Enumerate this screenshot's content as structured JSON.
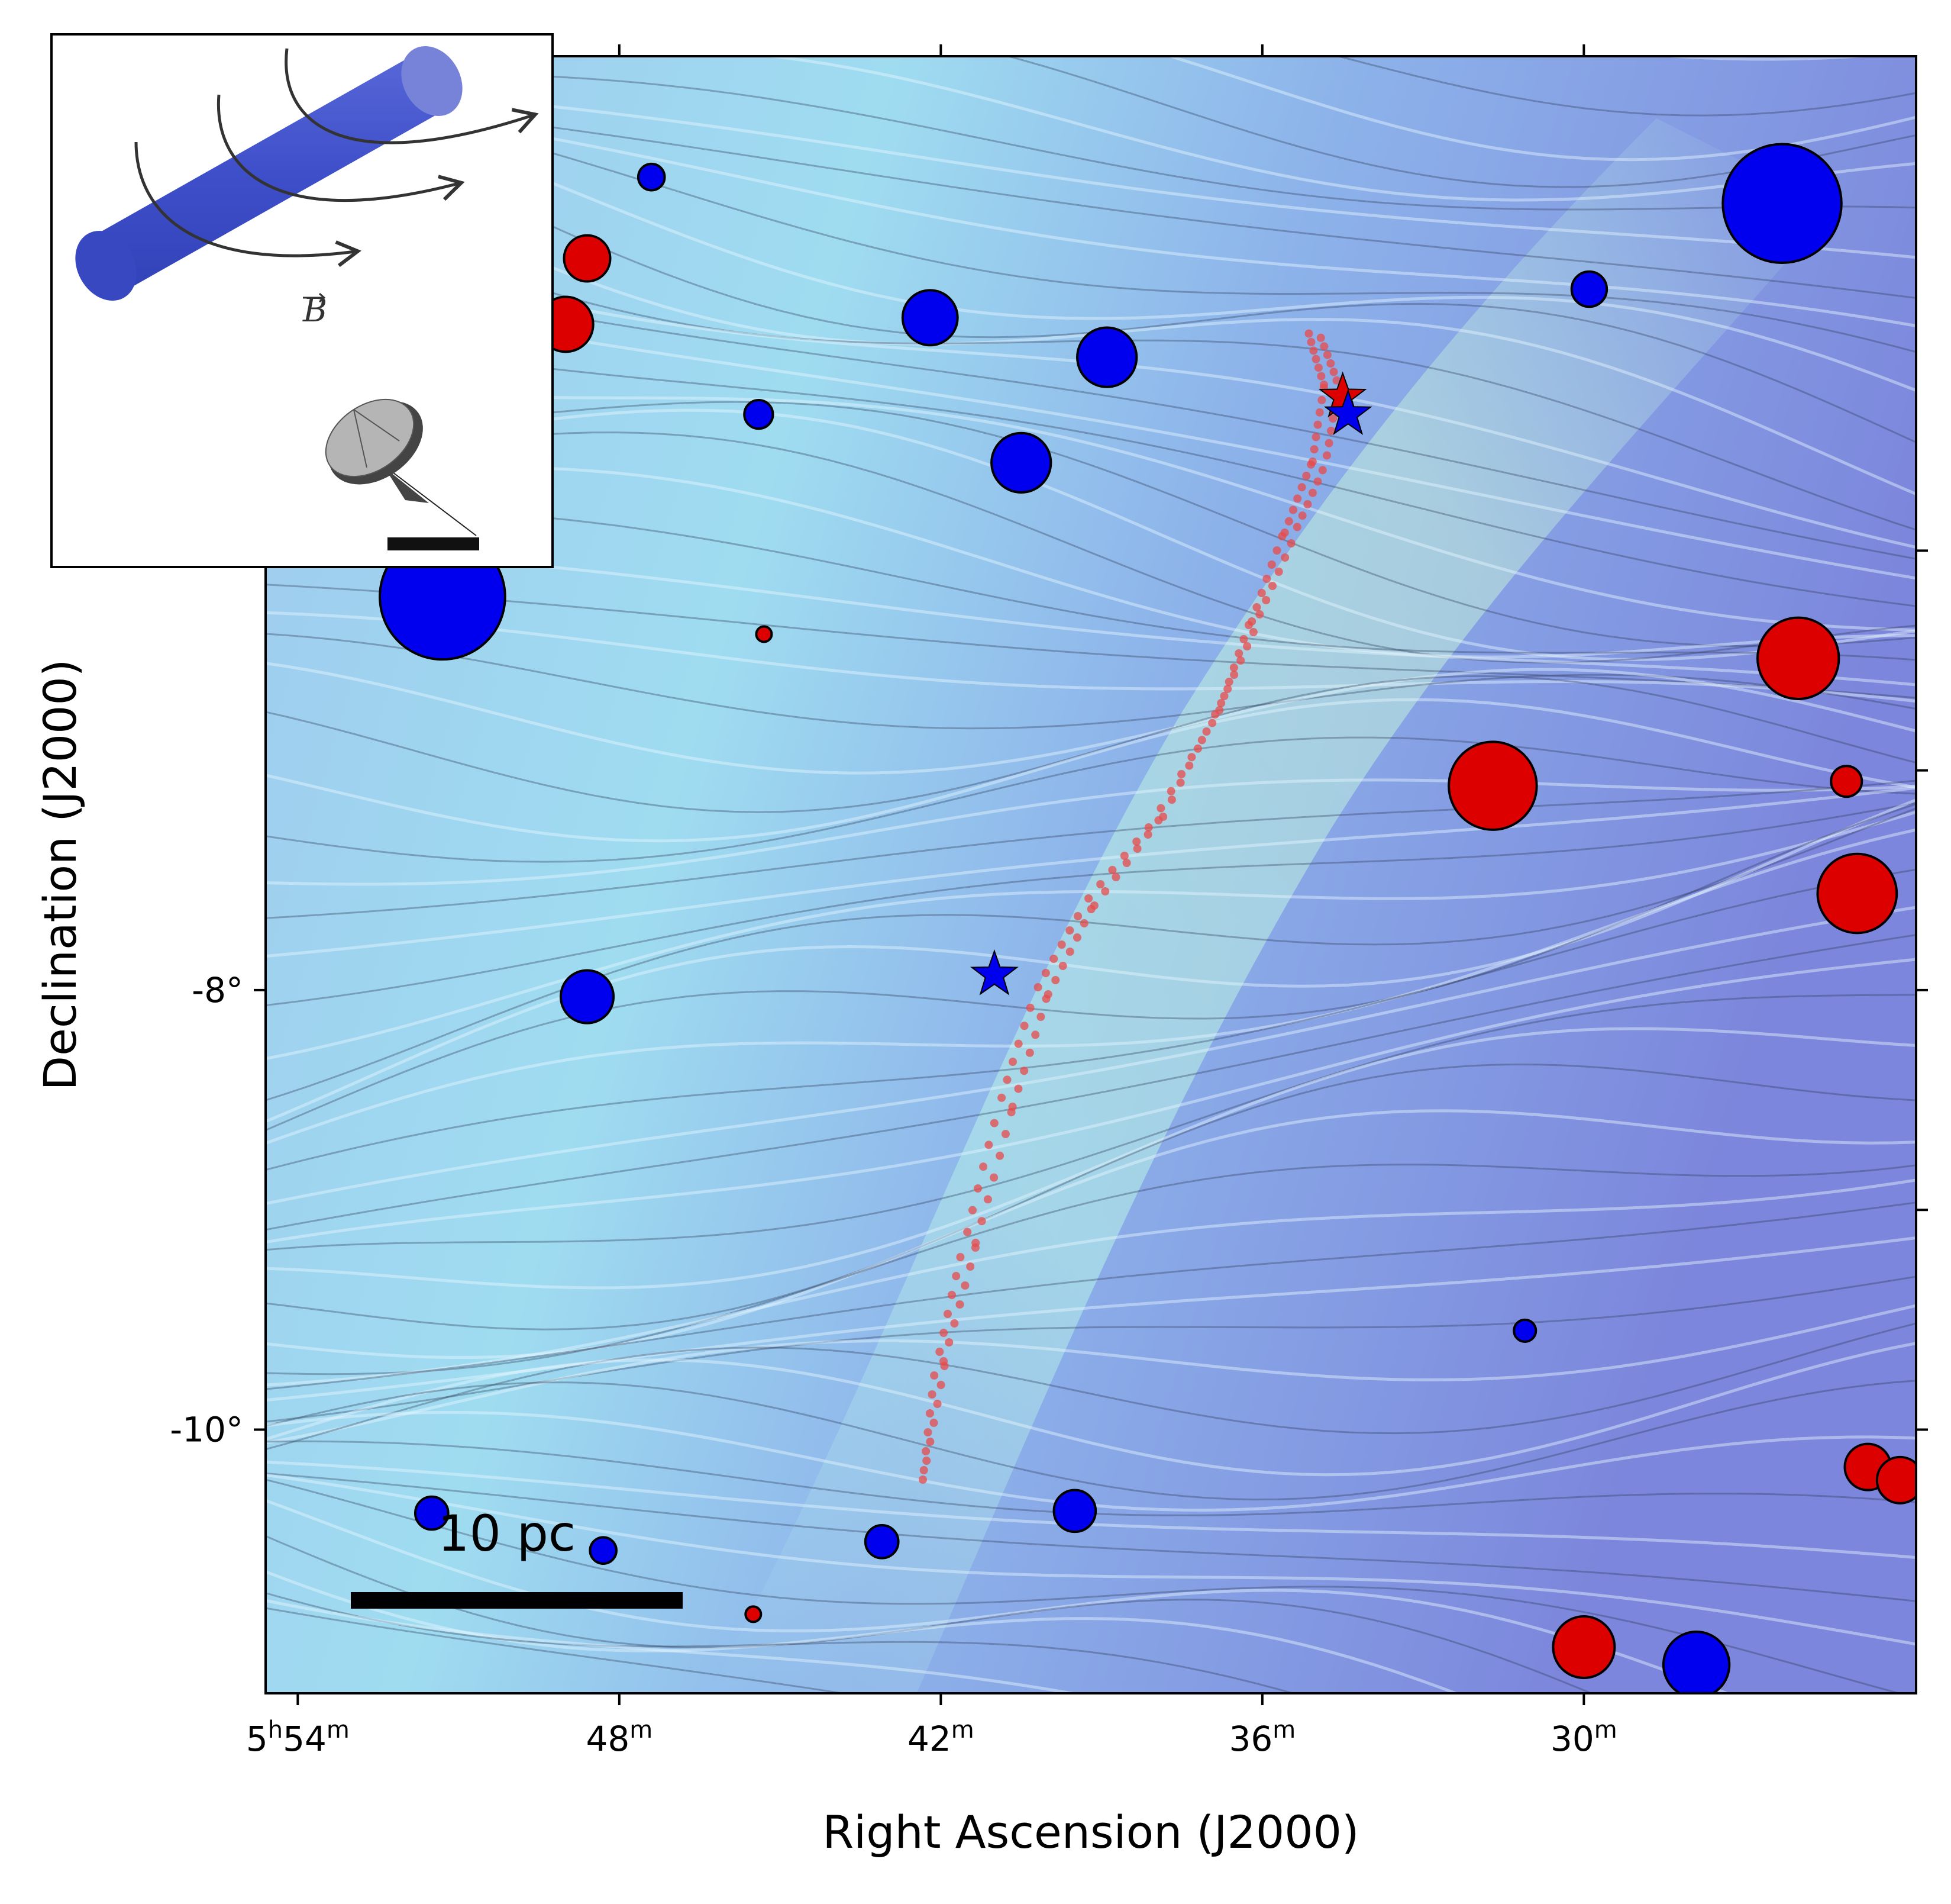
{
  "chart_data": {
    "type": "scatter",
    "xlabel": "Right Ascension (J2000)",
    "ylabel": "Declination (J2000)",
    "x_ticks": [
      {
        "value": 354,
        "hours": "5",
        "minutes": "54",
        "h_unit": "h",
        "m_unit": "m"
      },
      {
        "value": 348,
        "minutes": "48",
        "m_unit": "m"
      },
      {
        "value": 342,
        "minutes": "42",
        "m_unit": "m"
      },
      {
        "value": 336,
        "minutes": "36",
        "m_unit": "m"
      },
      {
        "value": 330,
        "minutes": "30",
        "m_unit": "m"
      }
    ],
    "y_ticks": [
      {
        "value": -8,
        "label": "-8°"
      },
      {
        "value": -10,
        "label": "-10°"
      }
    ],
    "y_minor_ticks": [
      -6,
      -7,
      -9
    ],
    "xlim": [
      354.6,
      323.8
    ],
    "ylim": [
      -11.2,
      -3.75
    ],
    "scale_bar": {
      "label": "10 pc"
    },
    "inset": {
      "b_label": "B"
    },
    "colors": {
      "blue_marker": "#0000ee",
      "red_marker": "#dd0000",
      "filament": "#e84a4a",
      "background": "#7f8fe0",
      "highlight": "#a9e6f2"
    },
    "stars": [
      {
        "ra": 334.5,
        "dec": -5.3,
        "color": "red"
      },
      {
        "ra": 334.4,
        "dec": -5.38,
        "color": "blue"
      },
      {
        "ra": 341.0,
        "dec": -7.93,
        "color": "blue"
      }
    ],
    "blue_circles": [
      {
        "ra": 347.4,
        "dec": -4.3,
        "size": 0.12
      },
      {
        "ra": 342.2,
        "dec": -4.94,
        "size": 0.25
      },
      {
        "ra": 338.9,
        "dec": -5.12,
        "size": 0.27
      },
      {
        "ra": 345.4,
        "dec": -5.38,
        "size": 0.13
      },
      {
        "ra": 340.5,
        "dec": -5.6,
        "size": 0.27
      },
      {
        "ra": 329.9,
        "dec": -4.81,
        "size": 0.16
      },
      {
        "ra": 326.3,
        "dec": -4.42,
        "size": 0.54
      },
      {
        "ra": 351.3,
        "dec": -6.21,
        "size": 0.57
      },
      {
        "ra": 348.6,
        "dec": -8.03,
        "size": 0.24
      },
      {
        "ra": 331.1,
        "dec": -9.55,
        "size": 0.1
      },
      {
        "ra": 339.5,
        "dec": -10.37,
        "size": 0.19
      },
      {
        "ra": 343.1,
        "dec": -10.51,
        "size": 0.15
      },
      {
        "ra": 351.5,
        "dec": -10.38,
        "size": 0.15
      },
      {
        "ra": 348.3,
        "dec": -10.55,
        "size": 0.12
      },
      {
        "ra": 327.9,
        "dec": -11.07,
        "size": 0.3
      }
    ],
    "red_circles": [
      {
        "ra": 348.6,
        "dec": -4.67,
        "size": 0.21
      },
      {
        "ra": 349.0,
        "dec": -4.97,
        "size": 0.25
      },
      {
        "ra": 345.3,
        "dec": -6.38,
        "size": 0.07
      },
      {
        "ra": 331.7,
        "dec": -7.07,
        "size": 0.4
      },
      {
        "ra": 326.0,
        "dec": -6.49,
        "size": 0.37
      },
      {
        "ra": 325.1,
        "dec": -7.05,
        "size": 0.14
      },
      {
        "ra": 324.9,
        "dec": -7.56,
        "size": 0.36
      },
      {
        "ra": 324.7,
        "dec": -10.17,
        "size": 0.21
      },
      {
        "ra": 324.1,
        "dec": -10.23,
        "size": 0.21
      },
      {
        "ra": 330.0,
        "dec": -10.99,
        "size": 0.28
      },
      {
        "ra": 345.5,
        "dec": -10.84,
        "size": 0.07
      }
    ]
  }
}
